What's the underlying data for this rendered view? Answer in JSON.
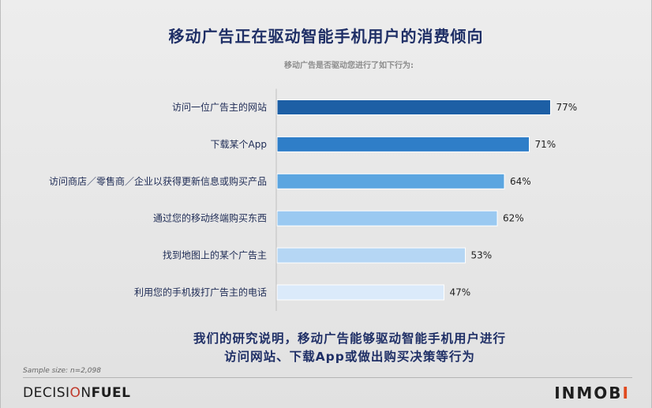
{
  "title": "移动广告正在驱动智能手机用户的消费倾向",
  "subtitle": "移动广告是否驱动您进行了如下行为:",
  "chart_data": {
    "type": "bar",
    "orientation": "horizontal",
    "categories": [
      "访问一位广告主的网站",
      "下载某个App",
      "访问商店／零售商／企业以获得更新信息或购买产品",
      "通过您的移动终端购买东西",
      "找到地图上的某个广告主",
      "利用您的手机拨打广告主的电话"
    ],
    "values": [
      77,
      71,
      64,
      62,
      53,
      47
    ],
    "value_labels": [
      "77%",
      "71%",
      "64%",
      "62%",
      "53%",
      "47%"
    ],
    "unit": "%",
    "xlim": [
      0,
      100
    ],
    "bar_colors": [
      "#1d5fa5",
      "#2f7ec8",
      "#5ba5e0",
      "#9ac9f1",
      "#b5d6f4",
      "#dbeafa"
    ],
    "grid": false,
    "legend": "none"
  },
  "conclusion": {
    "line1": "我们的研究说明，移动广告能够驱动智能手机用户进行",
    "line2": "访问网站、下载App或做出购买决策等行为"
  },
  "sample_size": "Sample size: n=2,098",
  "brand_left": {
    "part1": "DECISI",
    "part2": "O",
    "part3": "N",
    "part4": "FUEL"
  },
  "brand_right": {
    "part1": "INMOB",
    "part2": "I"
  }
}
